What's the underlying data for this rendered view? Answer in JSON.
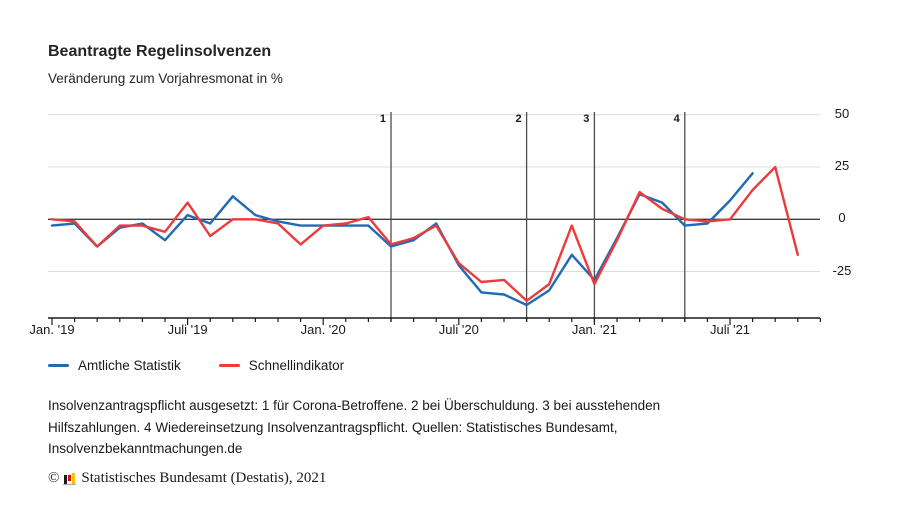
{
  "header": {
    "title": "Beantragte Regelinsolvenzen",
    "subtitle": "Veränderung zum Vorjahresmonat in %"
  },
  "chart_data": {
    "type": "line",
    "title": "Beantragte Regelinsolvenzen",
    "subtitle": "Veränderung zum Vorjahresmonat in %",
    "x": [
      "Jan. '19",
      "Feb. '19",
      "Mär. '19",
      "Apr. '19",
      "Mai '19",
      "Juni '19",
      "Juli '19",
      "Aug. '19",
      "Sep. '19",
      "Okt. '19",
      "Nov. '19",
      "Dez. '19",
      "Jan. '20",
      "Feb. '20",
      "Mär. '20",
      "Apr. '20",
      "Mai '20",
      "Juni '20",
      "Juli '20",
      "Aug. '20",
      "Sep. '20",
      "Okt. '20",
      "Nov. '20",
      "Dez. '20",
      "Jan. '21",
      "Feb. '21",
      "Mär. '21",
      "Apr. '21",
      "Mai '21",
      "Juni '21",
      "Juli '21",
      "Aug. '21",
      "Sep. '21",
      "Okt. '21"
    ],
    "series": [
      {
        "name": "Amtliche Statistik",
        "color": "#1f6cb4",
        "values": [
          -3,
          -2,
          -13,
          -4,
          -2,
          -10,
          2,
          -2,
          11,
          2,
          -1,
          -3,
          -3,
          -3,
          -3,
          -13,
          -10,
          -2,
          -22,
          -35,
          -36,
          -41,
          -34,
          -17,
          -29,
          -9,
          12,
          8,
          -3,
          -2,
          9,
          22
        ]
      },
      {
        "name": "Schnellindikator",
        "color": "#ee3a3c",
        "values": [
          0,
          -1,
          -13,
          -3,
          -3,
          -6,
          8,
          -8,
          0,
          0,
          -2,
          -12,
          -3,
          -2,
          1,
          -12,
          -9,
          -3,
          -21,
          -30,
          -29,
          -39,
          -31,
          -3,
          -31,
          -10,
          13,
          5,
          0,
          -1,
          0,
          14,
          25,
          -17
        ]
      }
    ],
    "y_axis": {
      "side": "right",
      "ticks": [
        50,
        25,
        0,
        -25
      ],
      "range": [
        -47,
        50
      ],
      "grid": true,
      "zero_line": true
    },
    "x_axis": {
      "major_labels": [
        {
          "label": "Jan. '19",
          "month": 0
        },
        {
          "label": "Juli '19",
          "month": 6
        },
        {
          "label": "Jan. '20",
          "month": 12
        },
        {
          "label": "Juli '20",
          "month": 18
        },
        {
          "label": "Jan. '21",
          "month": 24
        },
        {
          "label": "Juli '21",
          "month": 30
        }
      ]
    },
    "event_lines": [
      {
        "label": "1",
        "month": 15
      },
      {
        "label": "2",
        "month": 21
      },
      {
        "label": "3",
        "month": 24
      },
      {
        "label": "4",
        "month": 28
      }
    ],
    "legend_position": "bottom-left"
  },
  "legend": {
    "items": [
      {
        "label": "Amtliche Statistik",
        "color": "#1f6cb4"
      },
      {
        "label": "Schnellindikator",
        "color": "#ee3a3c"
      }
    ]
  },
  "footnote": {
    "lines": [
      "Insolvenzantragspflicht ausgesetzt: 1 für Corona-Betroffene. 2 bei Überschuldung. 3 bei ausstehenden",
      "Hilfszahlungen. 4 Wiedereinsetzung Insolvenzantragspflicht. Quellen: Statistisches Bundesamt,",
      "Insolvenzbekanntmachungen.de"
    ]
  },
  "copyright": {
    "symbol": "©",
    "text": "Statistisches Bundesamt (Destatis), 2021",
    "logo_colors": [
      "#1a1a1a",
      "#e2001a",
      "#f5c400"
    ]
  },
  "colors": {
    "grid": "#dcdcdc",
    "zero_line": "#3c3c3c",
    "axis": "#1a1a1a",
    "event_line": "#4d4d4d"
  }
}
